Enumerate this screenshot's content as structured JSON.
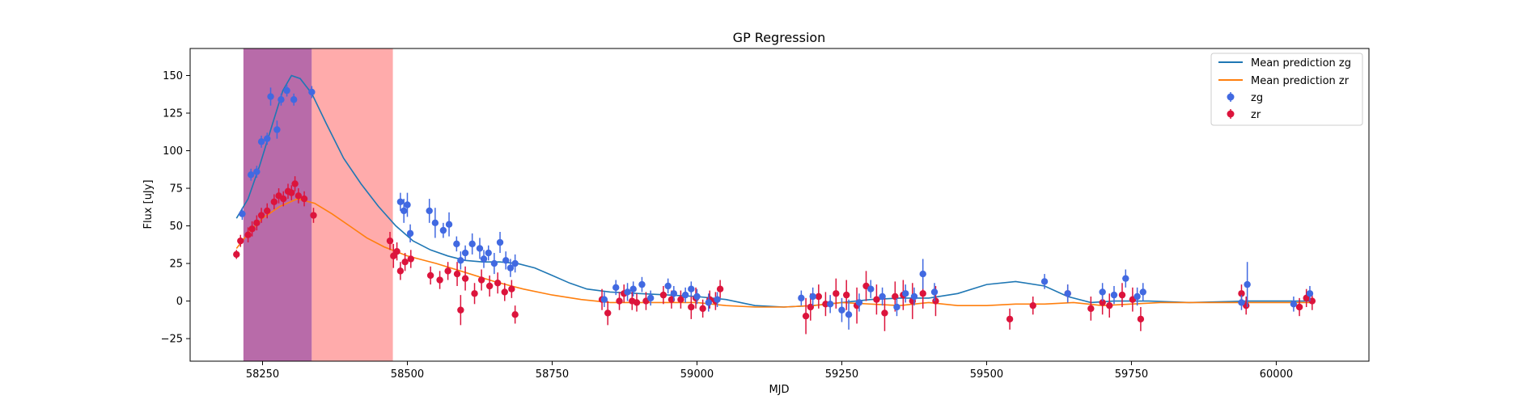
{
  "chart_data": {
    "type": "scatter",
    "title": "GP Regression",
    "xlabel": "MJD",
    "ylabel": "Flux [uJy]",
    "xlim": [
      58125,
      60160
    ],
    "ylim": [
      -40,
      168
    ],
    "xticks": [
      58250,
      58500,
      58750,
      59000,
      59250,
      59500,
      59750,
      60000
    ],
    "yticks": [
      -25,
      0,
      25,
      50,
      75,
      100,
      125,
      150
    ],
    "grid": false,
    "legend_position": "top-right",
    "shaded_regions": [
      {
        "x": [
          58217,
          58335
        ],
        "color": "#a03a8c"
      },
      {
        "x": [
          58335,
          58475
        ],
        "color": "#ffa6a6"
      }
    ],
    "series": [
      {
        "name": "Mean prediction zg",
        "kind": "line",
        "color": "#1f77b4",
        "x": [
          58205,
          58225,
          58245,
          58265,
          58285,
          58300,
          58315,
          58335,
          58360,
          58390,
          58420,
          58450,
          58480,
          58510,
          58540,
          58570,
          58600,
          58630,
          58660,
          58690,
          58720,
          58750,
          58780,
          58810,
          58850,
          58900,
          58950,
          59000,
          59050,
          59100,
          59150,
          59200,
          59250,
          59300,
          59350,
          59400,
          59450,
          59500,
          59550,
          59600,
          59640,
          59680,
          59720,
          59780,
          59850,
          59950,
          60060
        ],
        "y": [
          55,
          68,
          90,
          115,
          140,
          150,
          148,
          138,
          118,
          95,
          78,
          63,
          50,
          40,
          34,
          30,
          27,
          26,
          26,
          25,
          22,
          17,
          12,
          8,
          6,
          5,
          4,
          3,
          1,
          -3,
          -4,
          -3,
          -1,
          1,
          2,
          2,
          5,
          11,
          13,
          10,
          3,
          -1,
          0,
          0,
          -1,
          0,
          0
        ]
      },
      {
        "name": "Mean prediction zr",
        "kind": "line",
        "color": "#ff7f0e",
        "x": [
          58205,
          58225,
          58250,
          58280,
          58310,
          58340,
          58370,
          58400,
          58430,
          58460,
          58500,
          58550,
          58600,
          58650,
          58700,
          58750,
          58800,
          58850,
          58900,
          58950,
          59000,
          59050,
          59100,
          59150,
          59200,
          59250,
          59300,
          59350,
          59400,
          59450,
          59500,
          59550,
          59600,
          59650,
          59700,
          59750,
          59800,
          59900,
          60000,
          60060
        ],
        "y": [
          35,
          45,
          55,
          63,
          68,
          65,
          58,
          50,
          42,
          36,
          30,
          25,
          19,
          13,
          8,
          4,
          1,
          -1,
          -1,
          -1,
          -1,
          -3,
          -4,
          -4,
          -3,
          -1,
          -2,
          -3,
          -1,
          -3,
          -3,
          -2,
          -2,
          -1,
          -3,
          -2,
          -1,
          -1,
          -1,
          -1
        ]
      },
      {
        "name": "zg",
        "kind": "errorbar",
        "color": "#4169e1",
        "x": [
          58215,
          58230,
          58240,
          58248,
          58258,
          58264,
          58275,
          58282,
          58292,
          58304,
          58335,
          58488,
          58494,
          58500,
          58505,
          58538,
          58548,
          58562,
          58572,
          58585,
          58592,
          58600,
          58612,
          58625,
          58632,
          58640,
          58650,
          58660,
          58670,
          58678,
          58686,
          58840,
          58860,
          58880,
          58890,
          58905,
          58920,
          58950,
          58960,
          58980,
          58990,
          59000,
          59020,
          59035,
          59180,
          59200,
          59230,
          59250,
          59262,
          59280,
          59300,
          59320,
          59345,
          59360,
          59375,
          59390,
          59410,
          59600,
          59640,
          59700,
          59720,
          59740,
          59760,
          59770,
          59940,
          59950,
          60030,
          60058
        ],
        "y": [
          58,
          84,
          86,
          106,
          108,
          136,
          114,
          134,
          140,
          134,
          139,
          66,
          60,
          64,
          45,
          60,
          52,
          47,
          51,
          38,
          27,
          32,
          38,
          35,
          28,
          32,
          25,
          39,
          27,
          22,
          25,
          1,
          9,
          6,
          8,
          11,
          2,
          10,
          5,
          4,
          8,
          3,
          -1,
          1,
          2,
          3,
          -2,
          -6,
          -9,
          -1,
          8,
          3,
          -4,
          5,
          3,
          18,
          6,
          13,
          5,
          6,
          4,
          15,
          3,
          6,
          -1,
          11,
          -2,
          5
        ],
        "err": [
          4,
          4,
          4,
          4,
          4,
          6,
          6,
          4,
          4,
          4,
          4,
          6,
          8,
          8,
          6,
          8,
          10,
          5,
          8,
          5,
          6,
          5,
          7,
          7,
          6,
          5,
          7,
          7,
          6,
          6,
          6,
          5,
          5,
          6,
          5,
          5,
          5,
          5,
          5,
          5,
          5,
          5,
          6,
          5,
          5,
          6,
          6,
          8,
          10,
          6,
          6,
          6,
          6,
          6,
          6,
          10,
          6,
          5,
          6,
          6,
          6,
          6,
          6,
          6,
          5,
          15,
          5,
          5
        ]
      },
      {
        "name": "zr",
        "kind": "errorbar",
        "color": "#dc143c",
        "x": [
          58205,
          58212,
          58225,
          58232,
          58240,
          58248,
          58258,
          58270,
          58278,
          58286,
          58294,
          58300,
          58306,
          58312,
          58322,
          58338,
          58470,
          58476,
          58482,
          58488,
          58496,
          58506,
          58540,
          58556,
          58570,
          58586,
          58592,
          58600,
          58616,
          58628,
          58642,
          58656,
          58668,
          58680,
          58686,
          58836,
          58846,
          58866,
          58874,
          58888,
          58896,
          58912,
          58942,
          58956,
          58972,
          58990,
          58998,
          59010,
          59022,
          59032,
          59040,
          59188,
          59196,
          59210,
          59222,
          59240,
          59258,
          59276,
          59292,
          59310,
          59324,
          59342,
          59356,
          59372,
          59390,
          59412,
          59540,
          59580,
          59640,
          59680,
          59700,
          59712,
          59734,
          59752,
          59766,
          59940,
          59948,
          60040,
          60052,
          60062
        ],
        "y": [
          31,
          40,
          44,
          48,
          52,
          57,
          60,
          66,
          70,
          68,
          73,
          72,
          78,
          70,
          68,
          57,
          40,
          30,
          33,
          20,
          26,
          28,
          17,
          14,
          20,
          18,
          -6,
          15,
          5,
          14,
          10,
          12,
          6,
          8,
          -9,
          1,
          -8,
          0,
          5,
          0,
          -1,
          0,
          4,
          1,
          1,
          -4,
          2,
          -5,
          1,
          0,
          8,
          -10,
          -4,
          3,
          -2,
          5,
          4,
          -3,
          10,
          1,
          -8,
          3,
          4,
          0,
          5,
          0,
          -12,
          -3,
          5,
          -5,
          -1,
          -3,
          4,
          1,
          -12,
          5,
          -3,
          -4,
          2,
          0
        ],
        "err": [
          3,
          4,
          5,
          5,
          5,
          5,
          5,
          5,
          5,
          5,
          5,
          5,
          5,
          5,
          5,
          5,
          6,
          8,
          6,
          6,
          6,
          6,
          6,
          6,
          6,
          8,
          10,
          8,
          7,
          7,
          7,
          7,
          6,
          6,
          6,
          7,
          8,
          6,
          6,
          6,
          6,
          6,
          6,
          6,
          6,
          8,
          7,
          6,
          6,
          6,
          6,
          12,
          9,
          8,
          8,
          10,
          10,
          12,
          10,
          10,
          12,
          10,
          10,
          12,
          10,
          10,
          7,
          6,
          6,
          8,
          8,
          8,
          8,
          8,
          8,
          6,
          6,
          6,
          6,
          6
        ]
      }
    ]
  }
}
